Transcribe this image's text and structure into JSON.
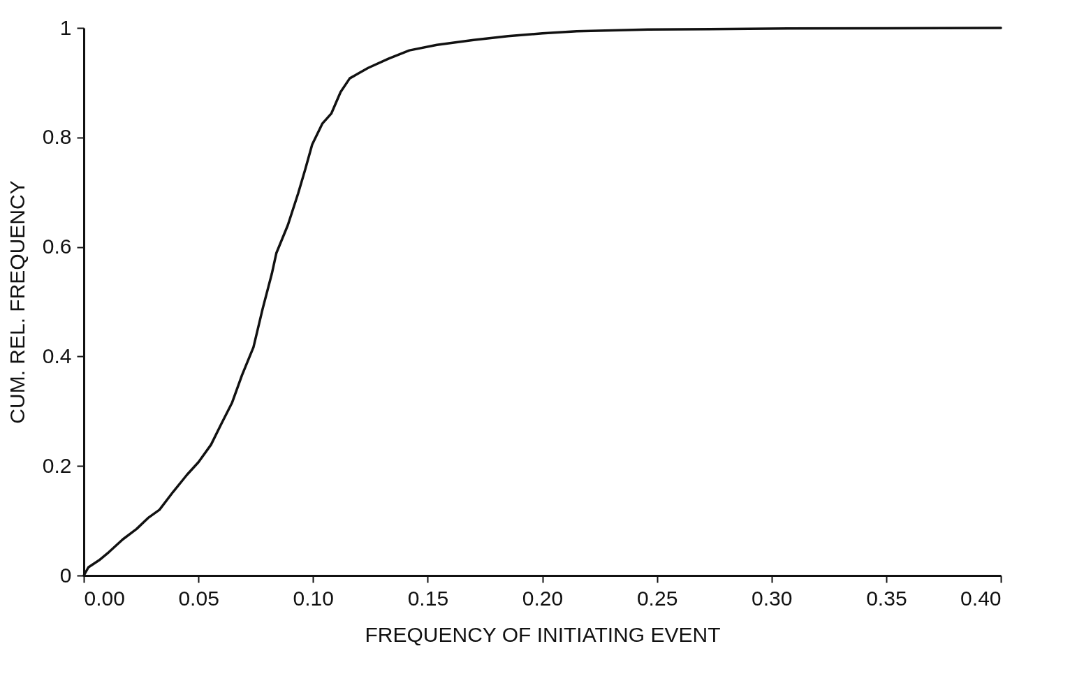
{
  "chart_data": {
    "type": "line",
    "xlabel": "FREQUENCY OF INITIATING EVENT",
    "ylabel": "CUM. REL. FREQUENCY",
    "x": [
      0,
      0.002,
      0.0067,
      0.011,
      0.017,
      0.023,
      0.028,
      0.033,
      0.039,
      0.045,
      0.05,
      0.0555,
      0.06,
      0.0646,
      0.069,
      0.074,
      0.078,
      0.082,
      0.084,
      0.089,
      0.0935,
      0.0966,
      0.0996,
      0.104,
      0.108,
      0.112,
      0.116,
      0.124,
      0.133,
      0.142,
      0.154,
      0.17,
      0.185,
      0.2,
      0.215,
      0.246,
      0.307,
      0.4
    ],
    "series": [
      {
        "color": "#111111",
        "values": [
          0,
          0.015,
          0.028,
          0.043,
          0.066,
          0.085,
          0.105,
          0.12,
          0.153,
          0.184,
          0.207,
          0.239,
          0.277,
          0.315,
          0.366,
          0.417,
          0.487,
          0.551,
          0.589,
          0.64,
          0.698,
          0.742,
          0.787,
          0.825,
          0.844,
          0.883,
          0.908,
          0.927,
          0.944,
          0.959,
          0.969,
          0.978,
          0.985,
          0.99,
          0.994,
          0.997,
          0.999,
          1.0
        ]
      }
    ],
    "xlim": [
      0,
      0.4
    ],
    "xticks": [
      {
        "value": 0,
        "label": "0.00"
      },
      {
        "value": 0.05,
        "label": "0.05"
      },
      {
        "value": 0.1,
        "label": "0.10"
      },
      {
        "value": 0.15,
        "label": "0.15"
      },
      {
        "value": 0.2,
        "label": "0.20"
      },
      {
        "value": 0.25,
        "label": "0.25"
      },
      {
        "value": 0.3,
        "label": "0.30"
      },
      {
        "value": 0.35,
        "label": "0.35"
      },
      {
        "value": 0.4,
        "label": "0.40"
      }
    ],
    "ylim": [
      0,
      1
    ],
    "yticks": [
      0,
      0.2,
      0.4,
      0.6,
      0.8,
      1
    ],
    "grid": false,
    "marker": "none",
    "line_style": "solid"
  }
}
